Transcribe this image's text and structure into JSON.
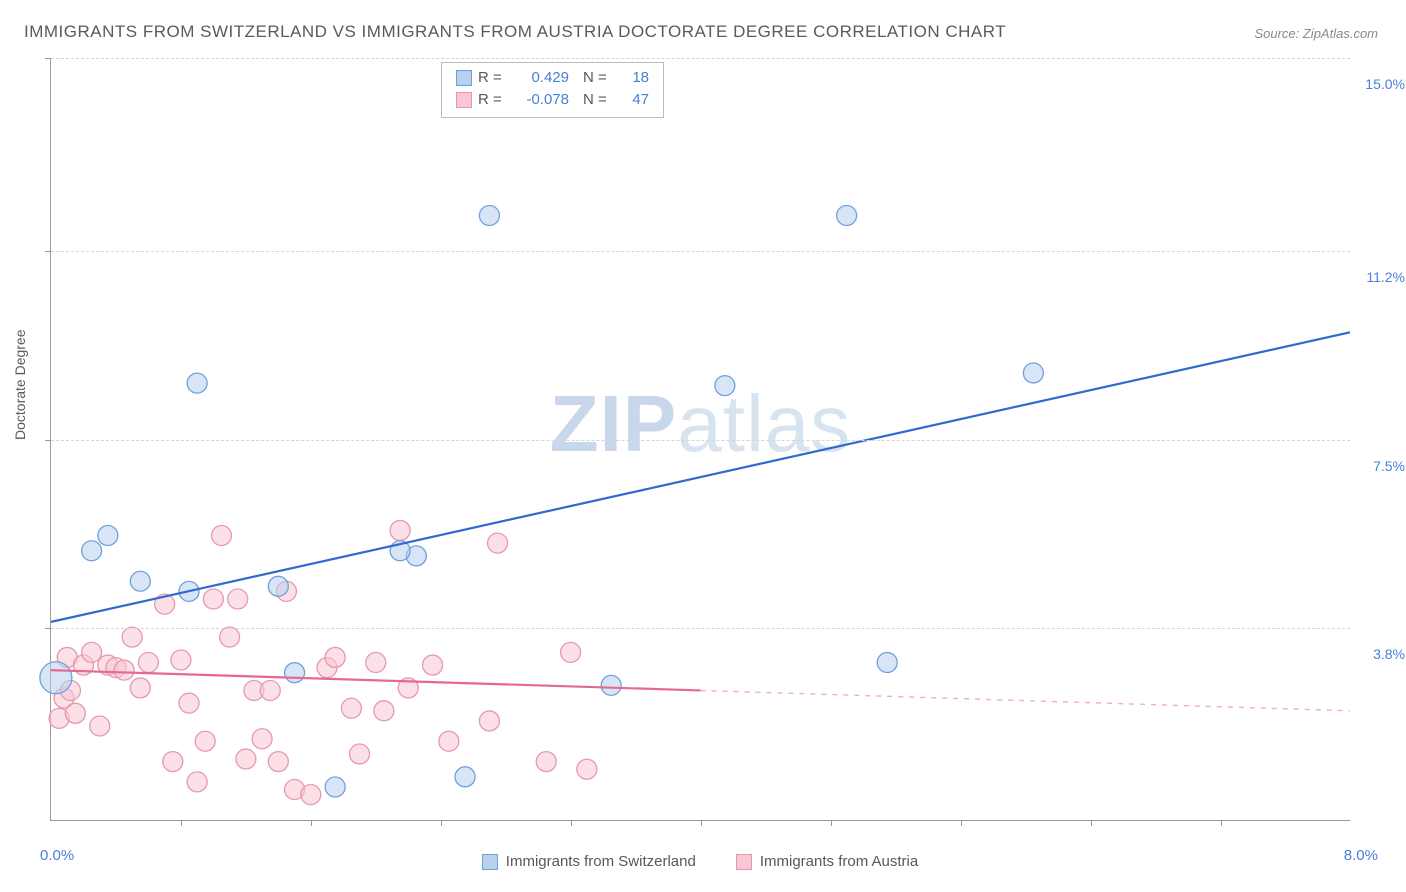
{
  "title": "IMMIGRANTS FROM SWITZERLAND VS IMMIGRANTS FROM AUSTRIA DOCTORATE DEGREE CORRELATION CHART",
  "source": "Source: ZipAtlas.com",
  "watermark_bold": "ZIP",
  "watermark_light": "atlas",
  "chart": {
    "type": "scatter",
    "background_color": "#ffffff",
    "grid_color": "#d5d5d5",
    "axis_color": "#9a9a9a",
    "text_color": "#5a5a5a",
    "value_color": "#4a7fd8",
    "xlim": [
      0.0,
      8.0
    ],
    "ylim": [
      0.0,
      15.0
    ],
    "x_min_label": "0.0%",
    "x_max_label": "8.0%",
    "ylabel": "Doctorate Degree",
    "label_fontsize": 14,
    "title_fontsize": 17,
    "ytick_positions": [
      3.8,
      7.5,
      11.2,
      15.0
    ],
    "ytick_labels": [
      "3.8%",
      "7.5%",
      "11.2%",
      "15.0%"
    ],
    "xtick_positions": [
      0.8,
      1.6,
      2.4,
      3.2,
      4.0,
      4.8,
      5.6,
      6.4,
      7.2
    ],
    "legend_top": [
      {
        "swatch_fill": "#b7d0ee",
        "swatch_border": "#6fa0dd",
        "r_label": "R =",
        "r_value": "0.429",
        "n_label": "N =",
        "n_value": "18"
      },
      {
        "swatch_fill": "#f7c8d4",
        "swatch_border": "#e897ad",
        "r_label": "R =",
        "r_value": "-0.078",
        "n_label": "N =",
        "n_value": "47"
      }
    ],
    "legend_bottom": [
      {
        "swatch_fill": "#b7d0ee",
        "swatch_border": "#6fa0dd",
        "label": "Immigrants from Switzerland"
      },
      {
        "swatch_fill": "#f7c8d4",
        "swatch_border": "#e897ad",
        "label": "Immigrants from Austria"
      }
    ],
    "series": [
      {
        "name": "switzerland",
        "marker_fill": "#b7d0ee",
        "marker_border": "#6fa0dd",
        "marker_fill_opacity": 0.55,
        "marker_radius": 10,
        "line_color": "#2e6bd0",
        "line_width": 2.2,
        "trend": {
          "x1": 0.0,
          "y1": 3.9,
          "x2": 8.0,
          "y2": 9.6
        },
        "points": [
          {
            "x": 0.03,
            "y": 2.8,
            "r": 16
          },
          {
            "x": 0.25,
            "y": 5.3,
            "r": 10
          },
          {
            "x": 0.55,
            "y": 4.7,
            "r": 10
          },
          {
            "x": 0.35,
            "y": 5.6,
            "r": 10
          },
          {
            "x": 0.85,
            "y": 4.5,
            "r": 10
          },
          {
            "x": 0.9,
            "y": 8.6,
            "r": 10
          },
          {
            "x": 1.4,
            "y": 4.6,
            "r": 10
          },
          {
            "x": 1.5,
            "y": 2.9,
            "r": 10
          },
          {
            "x": 1.75,
            "y": 0.65,
            "r": 10
          },
          {
            "x": 2.25,
            "y": 5.2,
            "r": 10
          },
          {
            "x": 2.55,
            "y": 0.85,
            "r": 10
          },
          {
            "x": 2.7,
            "y": 11.9,
            "r": 10
          },
          {
            "x": 3.45,
            "y": 2.65,
            "r": 10
          },
          {
            "x": 4.15,
            "y": 8.55,
            "r": 10
          },
          {
            "x": 4.9,
            "y": 11.9,
            "r": 10
          },
          {
            "x": 5.15,
            "y": 3.1,
            "r": 10
          },
          {
            "x": 6.05,
            "y": 8.8,
            "r": 10
          },
          {
            "x": 2.15,
            "y": 5.3,
            "r": 10
          }
        ]
      },
      {
        "name": "austria",
        "marker_fill": "#f7c8d4",
        "marker_border": "#e897ad",
        "marker_fill_opacity": 0.55,
        "marker_radius": 10,
        "line_color": "#e46a92",
        "line_width": 2.2,
        "trend": {
          "x1": 0.0,
          "y1": 2.95,
          "x2": 4.0,
          "y2": 2.55
        },
        "trend_ext": {
          "x1": 4.0,
          "y1": 2.55,
          "x2": 8.0,
          "y2": 2.15
        },
        "points": [
          {
            "x": 0.05,
            "y": 2.0,
            "r": 10
          },
          {
            "x": 0.08,
            "y": 2.4,
            "r": 10
          },
          {
            "x": 0.1,
            "y": 3.2,
            "r": 10
          },
          {
            "x": 0.15,
            "y": 2.1,
            "r": 10
          },
          {
            "x": 0.2,
            "y": 3.05,
            "r": 10
          },
          {
            "x": 0.25,
            "y": 3.3,
            "r": 10
          },
          {
            "x": 0.35,
            "y": 3.05,
            "r": 10
          },
          {
            "x": 0.4,
            "y": 3.0,
            "r": 10
          },
          {
            "x": 0.45,
            "y": 2.95,
            "r": 10
          },
          {
            "x": 0.5,
            "y": 3.6,
            "r": 10
          },
          {
            "x": 0.55,
            "y": 2.6,
            "r": 10
          },
          {
            "x": 0.6,
            "y": 3.1,
            "r": 10
          },
          {
            "x": 0.7,
            "y": 4.25,
            "r": 10
          },
          {
            "x": 0.75,
            "y": 1.15,
            "r": 10
          },
          {
            "x": 0.8,
            "y": 3.15,
            "r": 10
          },
          {
            "x": 0.85,
            "y": 2.3,
            "r": 10
          },
          {
            "x": 0.9,
            "y": 0.75,
            "r": 10
          },
          {
            "x": 0.95,
            "y": 1.55,
            "r": 10
          },
          {
            "x": 1.0,
            "y": 4.35,
            "r": 10
          },
          {
            "x": 1.05,
            "y": 5.6,
            "r": 10
          },
          {
            "x": 1.1,
            "y": 3.6,
            "r": 10
          },
          {
            "x": 1.15,
            "y": 4.35,
            "r": 10
          },
          {
            "x": 1.2,
            "y": 1.2,
            "r": 10
          },
          {
            "x": 1.25,
            "y": 2.55,
            "r": 10
          },
          {
            "x": 1.3,
            "y": 1.6,
            "r": 10
          },
          {
            "x": 1.35,
            "y": 2.55,
            "r": 10
          },
          {
            "x": 1.4,
            "y": 1.15,
            "r": 10
          },
          {
            "x": 1.45,
            "y": 4.5,
            "r": 10
          },
          {
            "x": 1.5,
            "y": 0.6,
            "r": 10
          },
          {
            "x": 1.6,
            "y": 0.5,
            "r": 10
          },
          {
            "x": 1.7,
            "y": 3.0,
            "r": 10
          },
          {
            "x": 1.75,
            "y": 3.2,
            "r": 10
          },
          {
            "x": 1.85,
            "y": 2.2,
            "r": 10
          },
          {
            "x": 1.9,
            "y": 1.3,
            "r": 10
          },
          {
            "x": 2.0,
            "y": 3.1,
            "r": 10
          },
          {
            "x": 2.05,
            "y": 2.15,
            "r": 10
          },
          {
            "x": 2.15,
            "y": 5.7,
            "r": 10
          },
          {
            "x": 2.2,
            "y": 2.6,
            "r": 10
          },
          {
            "x": 2.35,
            "y": 3.05,
            "r": 10
          },
          {
            "x": 2.45,
            "y": 1.55,
            "r": 10
          },
          {
            "x": 2.7,
            "y": 1.95,
            "r": 10
          },
          {
            "x": 2.75,
            "y": 5.45,
            "r": 10
          },
          {
            "x": 3.05,
            "y": 1.15,
            "r": 10
          },
          {
            "x": 3.2,
            "y": 3.3,
            "r": 10
          },
          {
            "x": 3.3,
            "y": 1.0,
            "r": 10
          },
          {
            "x": 0.3,
            "y": 1.85,
            "r": 10
          },
          {
            "x": 0.12,
            "y": 2.55,
            "r": 10
          }
        ]
      }
    ]
  }
}
